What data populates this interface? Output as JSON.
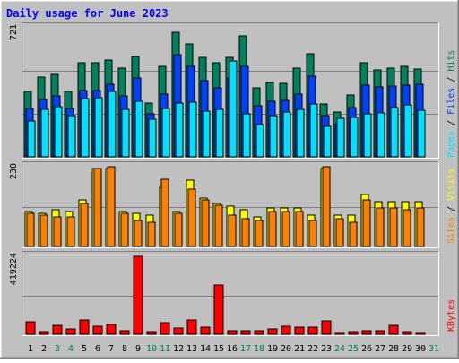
{
  "chart_data": {
    "type": "bar",
    "title": "Daily usage for June 2023",
    "days": [
      "1",
      "2",
      "3",
      "4",
      "5",
      "6",
      "7",
      "8",
      "9",
      "10",
      "11",
      "12",
      "13",
      "14",
      "15",
      "16",
      "17",
      "18",
      "19",
      "20",
      "21",
      "22",
      "23",
      "24",
      "25",
      "26",
      "27",
      "28",
      "29",
      "30",
      "31"
    ],
    "weekend_days": [
      3,
      4,
      10,
      11,
      17,
      18,
      24,
      25,
      31
    ],
    "colors": {
      "hits": "#00805C",
      "files": "#0040FF",
      "pages": "#00E0FF",
      "visits": "#FFFF00",
      "sites": "#FF8000",
      "kbytes": "#FF0000",
      "weekday_label": "#000000",
      "weekend_label": "#00805C",
      "title": "#0000FF",
      "panel": "#C0C0C0",
      "frame": "#C0C0C0"
    },
    "panels": [
      {
        "id": "top",
        "max_label": "721",
        "ylim": [
          0,
          721
        ],
        "series": [
          {
            "name": "Hits",
            "color_key": "hits",
            "values": [
              365,
              445,
              460,
              365,
              525,
              525,
              540,
              495,
              560,
              300,
              505,
              695,
              630,
              555,
              525,
              555,
              675,
              385,
              415,
              410,
              495,
              575,
              295,
              250,
              345,
              525,
              485,
              495,
              505,
              490,
              0
            ]
          },
          {
            "name": "Files",
            "color_key": "files",
            "values": [
              270,
              320,
              340,
              270,
              370,
              370,
              405,
              340,
              440,
              240,
              350,
              570,
              505,
              425,
              385,
              440,
              505,
              285,
              310,
              315,
              350,
              450,
              230,
              185,
              275,
              400,
              390,
              395,
              400,
              405,
              0
            ]
          },
          {
            "name": "Pages",
            "color_key": "pages",
            "values": [
              200,
              265,
              280,
              230,
              325,
              330,
              365,
              265,
              310,
              210,
              270,
              300,
              305,
              255,
              265,
              535,
              240,
              180,
              230,
              250,
              265,
              295,
              170,
              215,
              220,
              240,
              245,
              275,
              290,
              260,
              0
            ]
          }
        ]
      },
      {
        "id": "middle",
        "max_label": "230",
        "ylim": [
          0,
          230
        ],
        "series": [
          {
            "name": "Visits",
            "color_key": "visits",
            "values": [
              100,
              95,
              105,
              100,
              135,
              225,
              225,
              100,
              95,
              90,
              170,
              100,
              190,
              140,
              125,
              115,
              105,
              85,
              110,
              110,
              110,
              90,
              225,
              90,
              90,
              150,
              130,
              130,
              130,
              130,
              0
            ]
          },
          {
            "name": "Sites",
            "color_key": "sites",
            "values": [
              95,
              90,
              85,
              85,
              125,
              225,
              230,
              95,
              75,
              70,
              195,
              95,
              165,
              135,
              120,
              90,
              80,
              75,
              100,
              100,
              100,
              75,
              230,
              80,
              70,
              135,
              110,
              110,
              105,
              110,
              0
            ]
          }
        ]
      },
      {
        "id": "bottom",
        "max_label": "419224",
        "ylim": [
          0,
          419224
        ],
        "series": [
          {
            "name": "KBytes",
            "color_key": "kbytes",
            "values": [
              66000,
              15000,
              48000,
              27000,
              77000,
              45000,
              52000,
              18000,
              419224,
              13000,
              62000,
              32000,
              76000,
              37000,
              266000,
              18000,
              18000,
              18000,
              27000,
              42000,
              40000,
              37000,
              73000,
              12000,
              14000,
              20000,
              21000,
              48000,
              16000,
              12000,
              0
            ]
          }
        ]
      }
    ],
    "legend_top": [
      {
        "text": "Pages",
        "color_key": "pages"
      },
      {
        "text": " / ",
        "color_key": "weekday_label"
      },
      {
        "text": "Files",
        "color_key": "files"
      },
      {
        "text": " / ",
        "color_key": "weekday_label"
      },
      {
        "text": "Hits",
        "color_key": "hits"
      }
    ],
    "legend_middle": [
      {
        "text": "Sites",
        "color_key": "sites"
      },
      {
        "text": " / ",
        "color_key": "weekday_label"
      },
      {
        "text": "Visits",
        "color_key": "visits"
      }
    ],
    "legend_bottom": [
      {
        "text": "KBytes",
        "color_key": "kbytes"
      }
    ]
  }
}
